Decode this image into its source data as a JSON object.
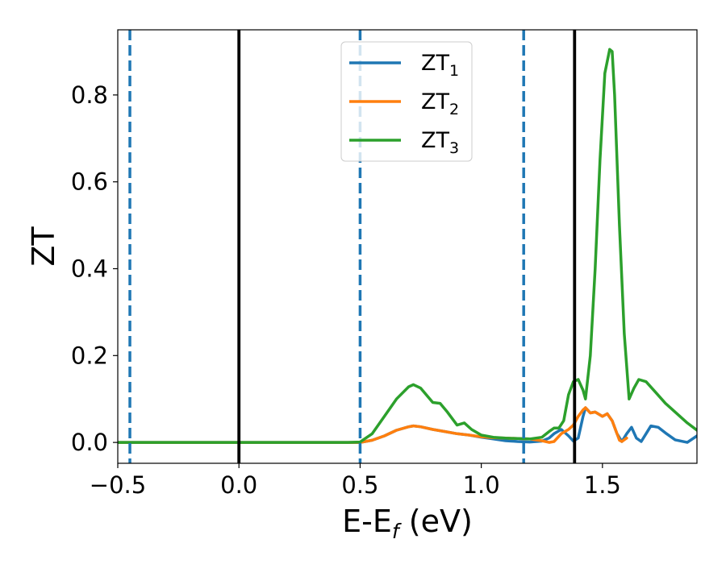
{
  "chart_data": {
    "type": "line",
    "xlabel_main": "E-E",
    "xlabel_sub": "f",
    "xlabel_unit": " (eV)",
    "ylabel": "ZT",
    "xlim": [
      -0.5,
      1.89
    ],
    "ylim": [
      -0.048,
      0.95
    ],
    "x_ticks": [
      {
        "value": -0.5,
        "label": "−0.5"
      },
      {
        "value": 0.0,
        "label": "0.0"
      },
      {
        "value": 0.5,
        "label": "0.5"
      },
      {
        "value": 1.0,
        "label": "1.0"
      },
      {
        "value": 1.5,
        "label": "1.5"
      }
    ],
    "y_ticks": [
      {
        "value": 0.0,
        "label": "0.0"
      },
      {
        "value": 0.2,
        "label": "0.2"
      },
      {
        "value": 0.4,
        "label": "0.4"
      },
      {
        "value": 0.6,
        "label": "0.6"
      },
      {
        "value": 0.8,
        "label": "0.8"
      }
    ],
    "grid": false,
    "legend_position": "top-center",
    "vlines": [
      {
        "x": -0.45,
        "style": "dashed",
        "color": "#1f77b4"
      },
      {
        "x": 0.0,
        "style": "solid",
        "color": "#000000"
      },
      {
        "x": 0.5,
        "style": "dashed",
        "color": "#1f77b4"
      },
      {
        "x": 1.175,
        "style": "dashed",
        "color": "#1f77b4"
      },
      {
        "x": 1.385,
        "style": "solid",
        "color": "#000000"
      }
    ],
    "series": [
      {
        "name": "ZT",
        "sub": "1",
        "color": "#1f77b4",
        "x": [
          -0.5,
          0.0,
          0.45,
          0.5,
          0.55,
          0.6,
          0.65,
          0.7,
          0.72,
          0.75,
          0.8,
          0.85,
          0.9,
          0.95,
          1.0,
          1.05,
          1.1,
          1.15,
          1.2,
          1.25,
          1.28,
          1.3,
          1.33,
          1.36,
          1.38,
          1.4,
          1.42,
          1.43,
          1.45,
          1.47,
          1.5,
          1.52,
          1.54,
          1.56,
          1.58,
          1.6,
          1.62,
          1.64,
          1.66,
          1.68,
          1.7,
          1.73,
          1.76,
          1.8,
          1.85,
          1.89
        ],
        "y": [
          0.0,
          0.0,
          0.0,
          0.0,
          0.005,
          0.015,
          0.028,
          0.036,
          0.038,
          0.036,
          0.03,
          0.025,
          0.02,
          0.017,
          0.012,
          0.008,
          0.004,
          0.002,
          0.001,
          0.003,
          0.01,
          0.02,
          0.03,
          0.015,
          0.003,
          0.01,
          0.06,
          0.08,
          0.068,
          0.07,
          0.06,
          0.066,
          0.05,
          0.02,
          0.002,
          0.02,
          0.035,
          0.01,
          0.002,
          0.02,
          0.038,
          0.035,
          0.022,
          0.006,
          0.0,
          0.015
        ]
      },
      {
        "name": "ZT",
        "sub": "2",
        "color": "#ff7f0e",
        "x": [
          -0.5,
          0.0,
          0.45,
          0.5,
          0.55,
          0.6,
          0.65,
          0.7,
          0.72,
          0.75,
          0.8,
          0.85,
          0.9,
          0.95,
          1.0,
          1.05,
          1.1,
          1.15,
          1.2,
          1.25,
          1.28,
          1.3,
          1.33,
          1.36,
          1.38,
          1.4,
          1.42,
          1.43,
          1.45,
          1.47,
          1.5,
          1.52,
          1.54,
          1.56,
          1.57,
          1.58,
          1.6
        ],
        "y": [
          0.0,
          0.0,
          0.0,
          0.0,
          0.005,
          0.015,
          0.028,
          0.036,
          0.038,
          0.036,
          0.03,
          0.025,
          0.02,
          0.017,
          0.013,
          0.011,
          0.01,
          0.009,
          0.008,
          0.004,
          0.0,
          0.002,
          0.02,
          0.03,
          0.04,
          0.06,
          0.075,
          0.08,
          0.068,
          0.07,
          0.06,
          0.066,
          0.05,
          0.02,
          0.005,
          0.002,
          0.01
        ]
      },
      {
        "name": "ZT",
        "sub": "3",
        "color": "#2ca02c",
        "x": [
          -0.5,
          0.0,
          0.45,
          0.5,
          0.55,
          0.6,
          0.65,
          0.7,
          0.72,
          0.75,
          0.8,
          0.83,
          0.86,
          0.9,
          0.93,
          0.96,
          1.0,
          1.05,
          1.1,
          1.15,
          1.2,
          1.25,
          1.28,
          1.3,
          1.32,
          1.34,
          1.36,
          1.38,
          1.4,
          1.42,
          1.43,
          1.45,
          1.47,
          1.49,
          1.51,
          1.53,
          1.54,
          1.55,
          1.57,
          1.59,
          1.61,
          1.63,
          1.65,
          1.68,
          1.72,
          1.76,
          1.8,
          1.85,
          1.89
        ],
        "y": [
          0.0,
          0.0,
          0.0,
          0.001,
          0.02,
          0.06,
          0.1,
          0.128,
          0.133,
          0.125,
          0.092,
          0.09,
          0.07,
          0.04,
          0.045,
          0.03,
          0.017,
          0.012,
          0.01,
          0.009,
          0.008,
          0.012,
          0.025,
          0.033,
          0.033,
          0.05,
          0.11,
          0.14,
          0.145,
          0.12,
          0.1,
          0.2,
          0.4,
          0.65,
          0.85,
          0.905,
          0.9,
          0.8,
          0.5,
          0.25,
          0.1,
          0.125,
          0.145,
          0.14,
          0.115,
          0.09,
          0.07,
          0.045,
          0.028
        ]
      }
    ]
  }
}
